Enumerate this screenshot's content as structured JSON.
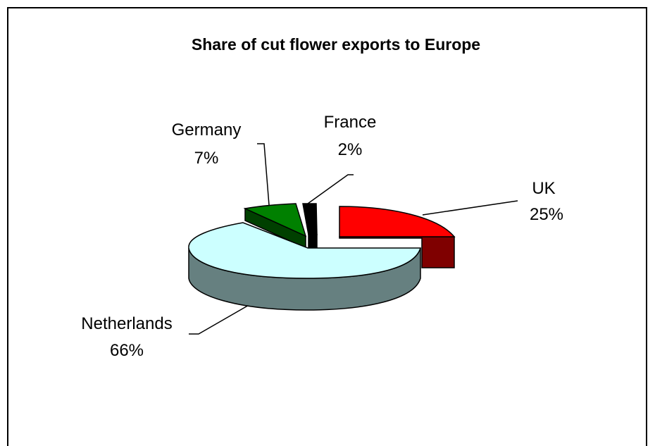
{
  "chart_data": {
    "type": "pie",
    "title": "Share of cut flower exports to Europe",
    "slices": [
      {
        "category": "UK",
        "label": "25%",
        "value": 25,
        "color": "#FF0000",
        "side_color": "#7F0000"
      },
      {
        "category": "Netherlands",
        "label": "66%",
        "value": 66,
        "color": "#CCFFFF",
        "side_color": "#668080"
      },
      {
        "category": "Germany",
        "label": "7%",
        "value": 7,
        "color": "#008000",
        "side_color": "#004000"
      },
      {
        "category": "France",
        "label": "2%",
        "value": 2,
        "color": "#000000",
        "side_color": "#000000"
      }
    ],
    "style": "3d-exploded",
    "legend": "none"
  }
}
